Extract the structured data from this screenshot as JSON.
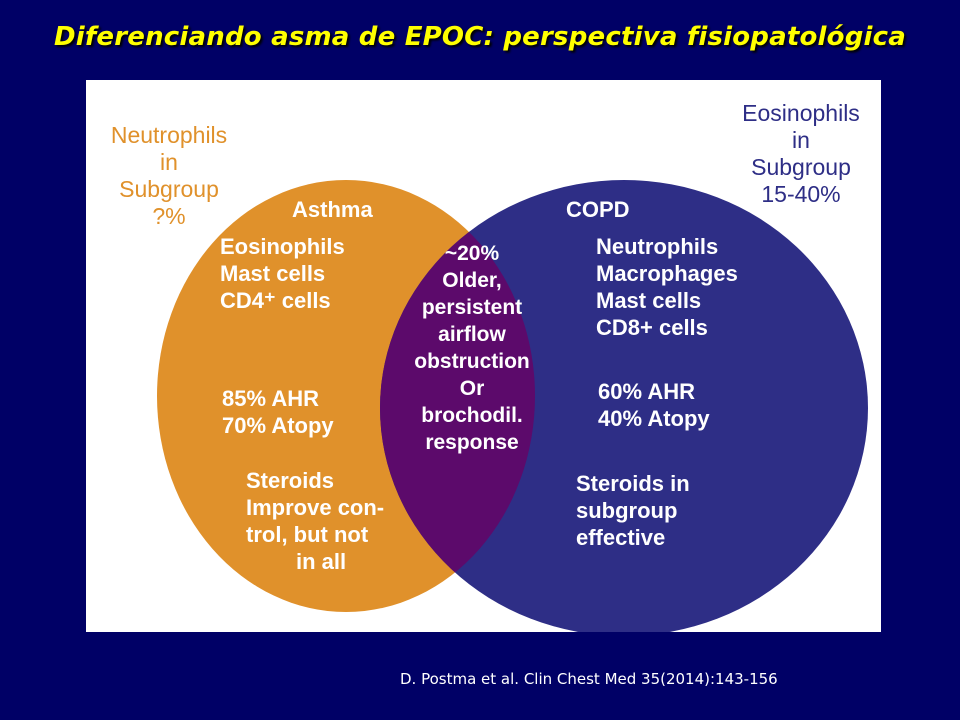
{
  "title": "Diferenciando asma de EPOC: perspectiva fisiopatológica",
  "citation": "D. Postma et al. Clin Chest Med 35(2014):143-156",
  "colors": {
    "background": "#000066",
    "title": "#FFFF00",
    "asthma_circle": "#E0912B",
    "copd_circle": "#2E2E86",
    "overlap": "#5C0A6B",
    "panel": "#FFFFFF"
  },
  "diagram": {
    "neutrophils_subgroup": [
      "Neutrophils",
      "in",
      "Subgroup",
      "?%"
    ],
    "eosinophils_subgroup": [
      "Eosinophils",
      "in",
      "Subgroup",
      "15-40%"
    ],
    "asthma": {
      "heading": "Asthma",
      "cells": [
        "Eosinophils",
        "Mast cells",
        "CD4⁺ cells"
      ],
      "stats": [
        "85% AHR",
        "70% Atopy"
      ],
      "steroids": [
        "Steroids",
        "Improve con-",
        "trol, but not",
        "in all"
      ]
    },
    "copd": {
      "heading": "COPD",
      "cells": [
        "Neutrophils",
        "Macrophages",
        "Mast cells",
        "CD8+ cells"
      ],
      "stats": [
        "60% AHR",
        "40% Atopy"
      ],
      "steroids": [
        "Steroids in",
        "subgroup",
        "effective"
      ]
    },
    "overlap": [
      "~20%",
      "Older,",
      "persistent",
      "airflow",
      "obstruction",
      "Or",
      "brochodil.",
      "response"
    ]
  }
}
